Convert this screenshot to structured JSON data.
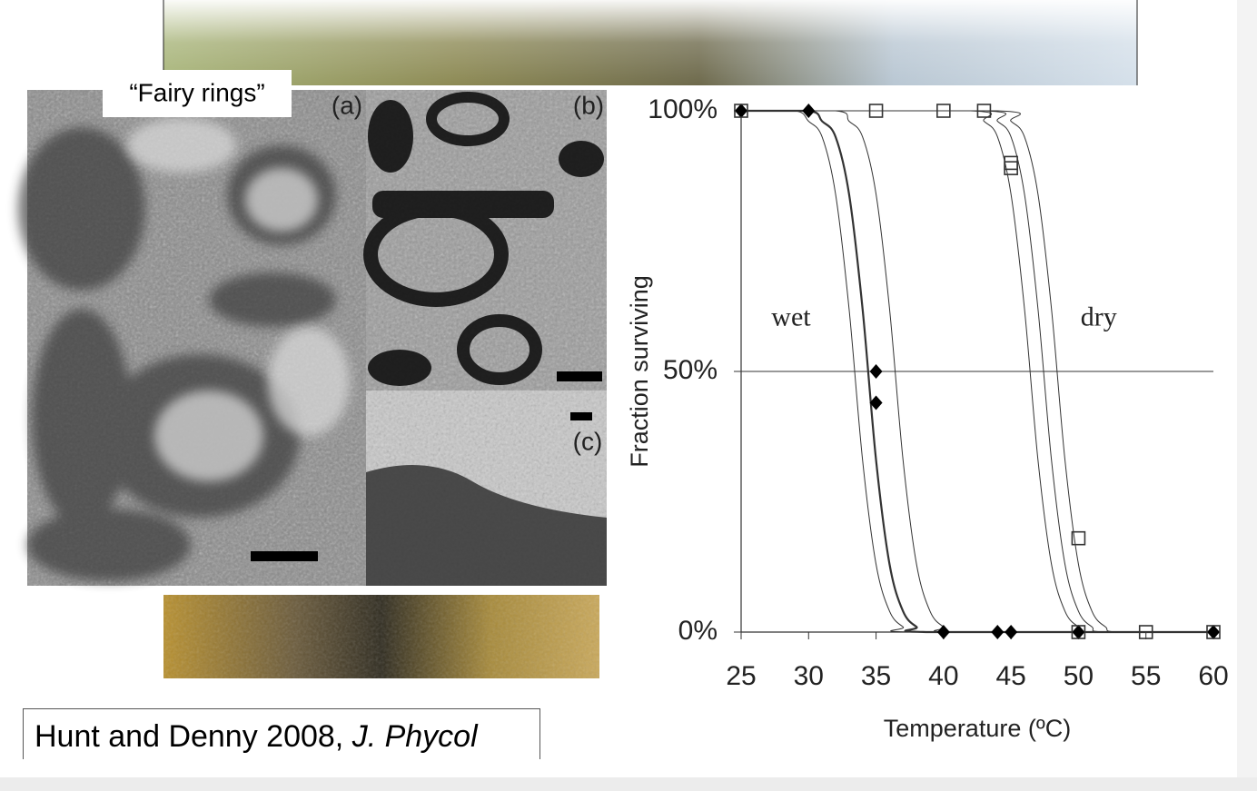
{
  "slide": {
    "photo_label": "“Fairy rings”",
    "panel_labels": [
      "(a)",
      "(b)",
      "(c)"
    ],
    "citation": {
      "authors": "Hunt and Denny 2008, ",
      "journal": "J. Phycol"
    }
  },
  "chart_data": {
    "type": "line",
    "x_label": "Temperature (ºC)",
    "y_label": "Fraction surviving",
    "xlim": [
      25,
      60
    ],
    "ylim": [
      0,
      100
    ],
    "xticks": [
      25,
      30,
      35,
      40,
      45,
      50,
      55,
      60
    ],
    "yticks": [
      {
        "value": 0,
        "label": "0%"
      },
      {
        "value": 50,
        "label": "50%"
      },
      {
        "value": 100,
        "label": "100%"
      }
    ],
    "reference_line": 50,
    "annotations": [
      {
        "text": "wet",
        "x": 28.7,
        "y": 60
      },
      {
        "text": "dry",
        "x": 51.5,
        "y": 60
      }
    ],
    "series": [
      {
        "marker": "diamond",
        "color": "#000000",
        "x": [
          25,
          30,
          35,
          35,
          40,
          44,
          45,
          50,
          60
        ],
        "values": [
          100,
          100,
          50,
          44,
          0,
          0,
          0,
          0,
          0
        ]
      },
      {
        "marker": "square",
        "color": "#333333",
        "x": [
          25,
          35,
          40,
          43,
          45,
          45,
          50,
          50,
          55,
          60
        ],
        "values": [
          100,
          100,
          100,
          100,
          90,
          89,
          18,
          0,
          0,
          0
        ]
      }
    ],
    "curves": [
      {
        "width": 1,
        "x": [
          25,
          29,
          30,
          31,
          32,
          33,
          34,
          35,
          36,
          37,
          38,
          60
        ],
        "values": [
          100,
          100,
          98,
          95,
          84,
          62,
          33,
          13,
          4,
          1,
          0,
          0
        ]
      },
      {
        "width": 2.2,
        "x": [
          25,
          30,
          31,
          32,
          33,
          34,
          35,
          36,
          37,
          38,
          39,
          60
        ],
        "values": [
          100,
          100,
          98,
          95,
          84,
          62,
          33,
          13,
          4,
          1,
          0,
          0
        ]
      },
      {
        "width": 1,
        "x": [
          25,
          32,
          33,
          34,
          35,
          36,
          37,
          38,
          39,
          40,
          41,
          60
        ],
        "values": [
          100,
          100,
          98,
          95,
          84,
          62,
          33,
          13,
          4,
          1,
          0,
          0
        ]
      },
      {
        "width": 1,
        "x": [
          25,
          42,
          43,
          44,
          45,
          46,
          47,
          48,
          49,
          50,
          51,
          60
        ],
        "values": [
          100,
          100,
          98,
          95,
          84,
          62,
          33,
          13,
          4,
          1,
          0,
          0
        ]
      },
      {
        "width": 1,
        "x": [
          25,
          43,
          44,
          45,
          46,
          47,
          48,
          49,
          50,
          51,
          52,
          60
        ],
        "values": [
          100,
          100,
          98,
          95,
          84,
          62,
          33,
          13,
          4,
          1,
          0,
          0
        ]
      },
      {
        "width": 1,
        "x": [
          25,
          44,
          45,
          46,
          47,
          48,
          49,
          50,
          51,
          52,
          53,
          60
        ],
        "values": [
          100,
          100,
          98,
          95,
          84,
          62,
          33,
          13,
          4,
          1,
          0,
          0
        ]
      }
    ]
  }
}
